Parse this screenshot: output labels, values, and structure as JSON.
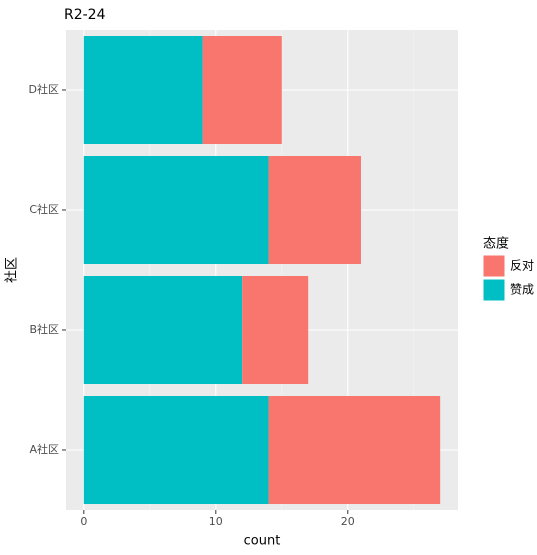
{
  "chart_data": {
    "type": "stacked-barh",
    "title": "R2-24",
    "x_label": "count",
    "y_label": "社区",
    "categories": [
      "A社区",
      "B社区",
      "C社区",
      "D社区"
    ],
    "series": [
      {
        "name": "反对",
        "color": "#f8766d",
        "values": [
          13,
          5,
          7,
          6
        ]
      },
      {
        "name": "赞成",
        "color": "#00bfc4",
        "values": [
          14,
          12,
          14,
          9
        ]
      }
    ],
    "xlim": [
      -1.35,
      28.35
    ],
    "xticks": [
      0,
      10,
      20
    ],
    "legend_title": "态度",
    "legend_position": "right",
    "grid": true
  }
}
